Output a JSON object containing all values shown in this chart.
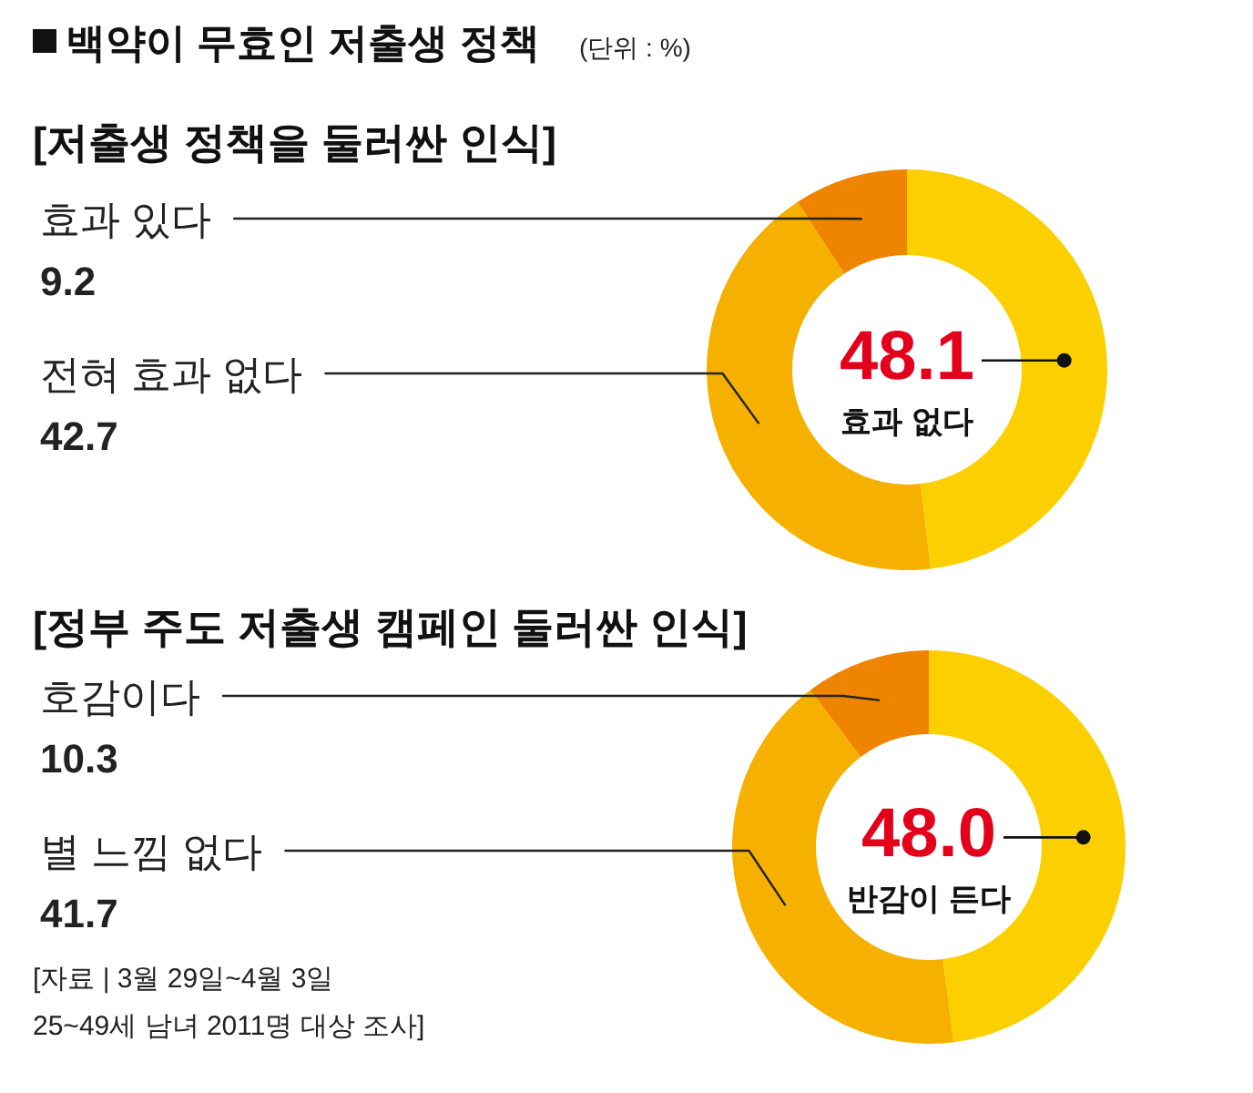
{
  "chart_data": [
    {
      "type": "donut",
      "title": "백약이 무효인 저출생 정책",
      "subtitle": "[저출생 정책을 둘러싼 인식]",
      "annotations": [
        "(단위 : %)"
      ],
      "categories": [
        "효과 없다",
        "전혀 효과 없다",
        "효과 있다"
      ],
      "values": [
        48.1,
        42.7,
        9.2
      ],
      "value_labels": [
        "48.1",
        "42.7",
        "9.2"
      ],
      "colors": [
        "#fcd000",
        "#f5b000",
        "#ee8400"
      ]
    },
    {
      "type": "donut",
      "title": "[정부 주도 저출생 캠페인 둘러싼 인식]",
      "annotations": [
        "[자료 | 3월 29일~4월 3일",
        "25~49세 남녀 2011명 대상 조사]"
      ],
      "categories": [
        "반감이 든다",
        "별 느낌 없다",
        "호감이다"
      ],
      "values": [
        48.0,
        41.7,
        10.3
      ],
      "value_labels": [
        "48.0",
        "41.7",
        "10.3"
      ],
      "colors": [
        "#fcd000",
        "#f5b000",
        "#ee8400"
      ]
    }
  ]
}
